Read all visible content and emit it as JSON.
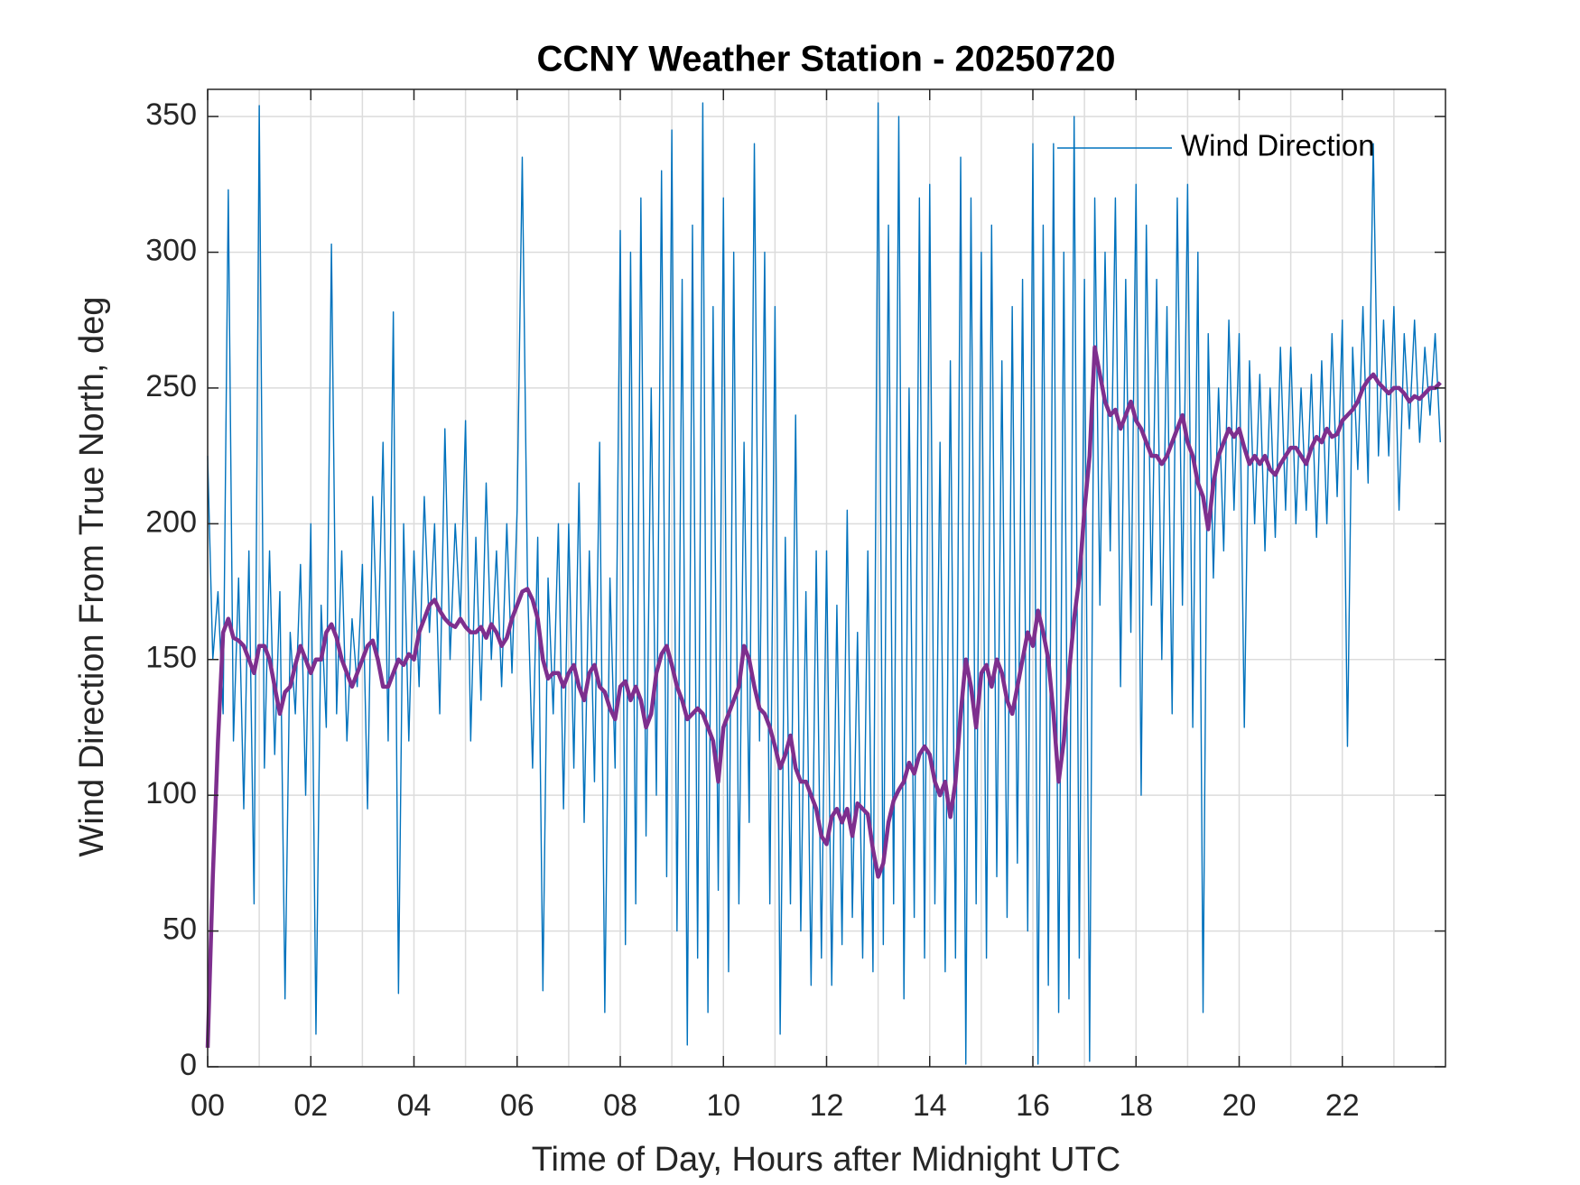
{
  "chart_data": {
    "type": "line",
    "title": "CCNY Weather Station - 20250720",
    "xlabel": "Time of Day, Hours after Midnight UTC",
    "ylabel": "Wind Direction From True North, deg",
    "xlim": [
      0,
      24
    ],
    "ylim": [
      0,
      360
    ],
    "xticks": [
      {
        "value": 0,
        "label": "00"
      },
      {
        "value": 2,
        "label": "02"
      },
      {
        "value": 4,
        "label": "04"
      },
      {
        "value": 6,
        "label": "06"
      },
      {
        "value": 8,
        "label": "08"
      },
      10,
      12,
      14,
      16,
      18,
      20,
      22
    ],
    "xminorticks": [
      1,
      3,
      5,
      7,
      9,
      11,
      13,
      15,
      17,
      19,
      21,
      23
    ],
    "yticks": [
      0,
      50,
      100,
      150,
      200,
      250,
      300,
      350
    ],
    "grid": true,
    "legend": "upper right",
    "x": [
      0,
      0.1,
      0.2,
      0.3,
      0.4,
      0.5,
      0.6,
      0.7,
      0.8,
      0.9,
      1,
      1.1,
      1.2,
      1.3,
      1.4,
      1.5,
      1.6,
      1.7,
      1.8,
      1.9,
      2,
      2.1,
      2.2,
      2.3,
      2.4,
      2.5,
      2.6,
      2.7,
      2.8,
      2.9,
      3,
      3.1,
      3.2,
      3.3,
      3.4,
      3.5,
      3.6,
      3.7,
      3.8,
      3.9,
      4,
      4.1,
      4.2,
      4.3,
      4.4,
      4.5,
      4.6,
      4.7,
      4.8,
      4.9,
      5,
      5.1,
      5.2,
      5.3,
      5.4,
      5.5,
      5.6,
      5.7,
      5.8,
      5.9,
      6,
      6.1,
      6.2,
      6.3,
      6.4,
      6.5,
      6.6,
      6.7,
      6.8,
      6.9,
      7,
      7.1,
      7.2,
      7.3,
      7.4,
      7.5,
      7.6,
      7.7,
      7.8,
      7.9,
      8,
      8.1,
      8.2,
      8.3,
      8.4,
      8.5,
      8.6,
      8.7,
      8.8,
      8.9,
      9,
      9.1,
      9.2,
      9.3,
      9.4,
      9.5,
      9.6,
      9.7,
      9.8,
      9.9,
      10,
      10.1,
      10.2,
      10.3,
      10.4,
      10.5,
      10.6,
      10.7,
      10.8,
      10.9,
      11,
      11.1,
      11.2,
      11.3,
      11.4,
      11.5,
      11.6,
      11.7,
      11.8,
      11.9,
      12,
      12.1,
      12.2,
      12.3,
      12.4,
      12.5,
      12.6,
      12.7,
      12.8,
      12.9,
      13,
      13.1,
      13.2,
      13.3,
      13.4,
      13.5,
      13.6,
      13.7,
      13.8,
      13.9,
      14,
      14.1,
      14.2,
      14.3,
      14.4,
      14.5,
      14.6,
      14.7,
      14.8,
      14.9,
      15,
      15.1,
      15.2,
      15.3,
      15.4,
      15.5,
      15.6,
      15.7,
      15.8,
      15.9,
      16,
      16.1,
      16.2,
      16.3,
      16.4,
      16.5,
      16.6,
      16.7,
      16.8,
      16.9,
      17,
      17.1,
      17.2,
      17.3,
      17.4,
      17.5,
      17.6,
      17.7,
      17.8,
      17.9,
      18,
      18.1,
      18.2,
      18.3,
      18.4,
      18.5,
      18.6,
      18.7,
      18.8,
      18.9,
      19,
      19.1,
      19.2,
      19.3,
      19.4,
      19.5,
      19.6,
      19.7,
      19.8,
      19.9,
      20,
      20.1,
      20.2,
      20.3,
      20.4,
      20.5,
      20.6,
      20.7,
      20.8,
      20.9,
      21,
      21.1,
      21.2,
      21.3,
      21.4,
      21.5,
      21.6,
      21.7,
      21.8,
      21.9,
      22,
      22.1,
      22.2,
      22.3,
      22.4,
      22.5,
      22.6,
      22.7,
      22.8,
      22.9,
      23,
      23.1,
      23.2,
      23.3,
      23.4,
      23.5,
      23.6,
      23.7,
      23.8,
      23.9
    ],
    "series": [
      {
        "name": "Wind Direction",
        "color": "#0072BD",
        "width": 1.4,
        "values": [
          225,
          150,
          175,
          130,
          323,
          120,
          180,
          95,
          190,
          60,
          354,
          110,
          190,
          115,
          175,
          25,
          160,
          130,
          185,
          100,
          200,
          12,
          170,
          125,
          303,
          130,
          190,
          120,
          165,
          140,
          185,
          95,
          210,
          150,
          230,
          120,
          278,
          27,
          200,
          120,
          190,
          140,
          210,
          160,
          200,
          130,
          235,
          150,
          200,
          165,
          238,
          120,
          195,
          135,
          215,
          150,
          190,
          140,
          200,
          145,
          205,
          335,
          180,
          110,
          195,
          28,
          180,
          130,
          200,
          95,
          200,
          110,
          215,
          90,
          190,
          105,
          230,
          20,
          180,
          110,
          308,
          45,
          300,
          60,
          320,
          85,
          250,
          100,
          330,
          70,
          345,
          50,
          290,
          8,
          310,
          40,
          355,
          20,
          280,
          65,
          320,
          35,
          300,
          60,
          230,
          90,
          340,
          120,
          300,
          60,
          280,
          12,
          195,
          60,
          240,
          50,
          175,
          30,
          190,
          40,
          190,
          30,
          170,
          45,
          205,
          55,
          160,
          40,
          190,
          35,
          355,
          45,
          310,
          60,
          350,
          25,
          250,
          55,
          320,
          40,
          325,
          60,
          230,
          35,
          260,
          40,
          335,
          1,
          320,
          60,
          300,
          40,
          310,
          70,
          260,
          55,
          280,
          75,
          290,
          50,
          340,
          1,
          310,
          30,
          340,
          20,
          300,
          25,
          350,
          40,
          290,
          2,
          320,
          170,
          300,
          190,
          320,
          140,
          290,
          160,
          325,
          100,
          310,
          170,
          290,
          150,
          280,
          130,
          320,
          170,
          325,
          125,
          300,
          20,
          270,
          180,
          250,
          190,
          275,
          205,
          270,
          125,
          260,
          200,
          255,
          190,
          250,
          195,
          265,
          205,
          265,
          200,
          250,
          205,
          255,
          195,
          260,
          200,
          270,
          210,
          275,
          118,
          265,
          220,
          280,
          215,
          340,
          225,
          275,
          225,
          280,
          205,
          270,
          235,
          275,
          230,
          265,
          240,
          270,
          230
        ]
      },
      {
        "color": "#7E2F8E",
        "width": 4.5,
        "values": [
          7,
          70,
          120,
          160,
          165,
          158,
          157,
          155,
          150,
          145,
          155,
          155,
          150,
          140,
          130,
          138,
          140,
          148,
          155,
          150,
          145,
          150,
          150,
          160,
          163,
          158,
          150,
          145,
          140,
          145,
          150,
          155,
          157,
          150,
          140,
          140,
          145,
          150,
          148,
          152,
          150,
          160,
          165,
          170,
          172,
          168,
          165,
          163,
          162,
          165,
          162,
          160,
          160,
          162,
          158,
          163,
          160,
          155,
          158,
          165,
          170,
          175,
          176,
          172,
          165,
          150,
          143,
          145,
          145,
          140,
          145,
          148,
          140,
          135,
          145,
          148,
          140,
          138,
          132,
          128,
          140,
          142,
          135,
          140,
          135,
          125,
          130,
          145,
          152,
          155,
          148,
          140,
          135,
          128,
          130,
          132,
          130,
          125,
          120,
          105,
          125,
          130,
          135,
          140,
          155,
          150,
          140,
          132,
          130,
          125,
          118,
          110,
          115,
          122,
          110,
          105,
          105,
          100,
          95,
          85,
          82,
          92,
          95,
          90,
          95,
          85,
          97,
          95,
          93,
          80,
          70,
          75,
          90,
          98,
          102,
          105,
          112,
          108,
          115,
          118,
          115,
          105,
          100,
          105,
          92,
          105,
          130,
          150,
          140,
          125,
          145,
          148,
          140,
          150,
          145,
          135,
          130,
          140,
          150,
          160,
          155,
          168,
          160,
          150,
          130,
          105,
          120,
          145,
          165,
          180,
          205,
          225,
          265,
          255,
          245,
          240,
          242,
          235,
          240,
          245,
          238,
          235,
          230,
          225,
          225,
          222,
          225,
          230,
          235,
          240,
          230,
          225,
          215,
          210,
          198,
          215,
          225,
          230,
          235,
          232,
          235,
          228,
          222,
          225,
          222,
          225,
          220,
          218,
          222,
          225,
          228,
          228,
          225,
          222,
          228,
          232,
          230,
          235,
          232,
          233,
          238,
          240,
          242,
          245,
          250,
          253,
          255,
          252,
          250,
          248,
          250,
          250,
          248,
          245,
          247,
          246,
          248,
          250,
          250,
          252
        ]
      }
    ]
  }
}
